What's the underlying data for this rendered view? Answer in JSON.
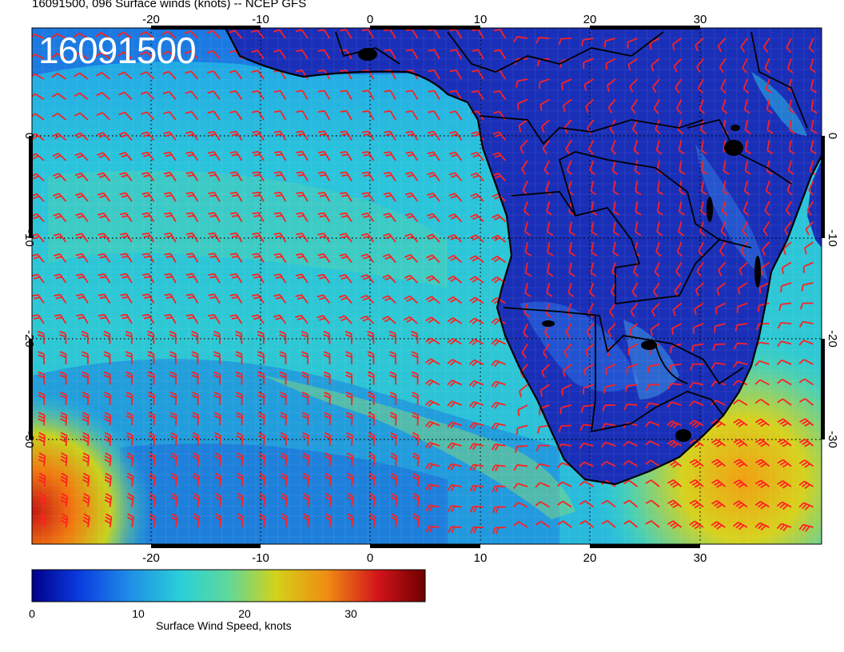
{
  "map": {
    "title": "16091500, 096 Surface winds (knots) -- NCEP GFS",
    "stamp": "16091500",
    "lon_ticks": [
      "-20",
      "-10",
      "0",
      "10",
      "20",
      "30"
    ],
    "lat_ticks": [
      "0",
      "-10",
      "-20",
      "-30"
    ],
    "lon_range": [
      -30,
      40
    ],
    "lat_range": [
      -40,
      10
    ],
    "barb_color": "#ff2020",
    "coast_color": "#000000",
    "grid": true
  },
  "colorbar": {
    "label": "Surface Wind Speed, knots",
    "ticks": [
      "0",
      "10",
      "20",
      "30"
    ],
    "range": [
      0,
      37
    ],
    "colors": [
      "#00008b",
      "#0a3be0",
      "#1f8fe6",
      "#2ad0d8",
      "#5fd89a",
      "#d2d21a",
      "#f08c12",
      "#d2141a",
      "#6e0000"
    ]
  }
}
